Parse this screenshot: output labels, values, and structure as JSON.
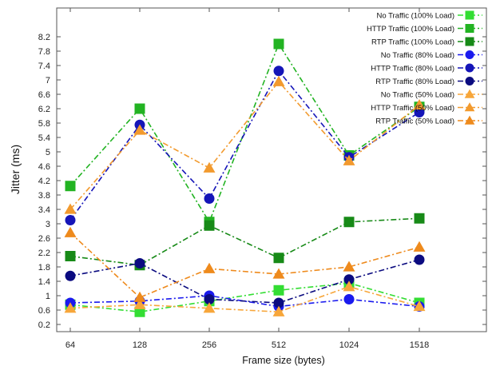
{
  "chart_data": {
    "type": "line",
    "xlabel": "Frame size (bytes)",
    "ylabel": "Jitter (ms)",
    "categories": [
      "64",
      "128",
      "256",
      "512",
      "1024",
      "1518"
    ],
    "y_ticks": [
      "0.2",
      "0.6",
      "1",
      "1.4",
      "1.8",
      "2.2",
      "2.6",
      "3",
      "3.4",
      "3.8",
      "4.2",
      "4.6",
      "5",
      "5.4",
      "5.8",
      "6.2",
      "6.6",
      "7",
      "7.4",
      "7.8",
      "8.2"
    ],
    "ylim": [
      0,
      9
    ],
    "legend_position": "top-right",
    "grid": false,
    "series": [
      {
        "name": "No Traffic (100% Load)",
        "color": "#33dd33",
        "marker": "square",
        "values": [
          0.75,
          0.55,
          0.85,
          1.15,
          1.35,
          0.8
        ]
      },
      {
        "name": "HTTP Traffic (100% Load)",
        "color": "#22b322",
        "marker": "square",
        "values": [
          4.05,
          6.2,
          3.05,
          8.0,
          4.9,
          6.25
        ]
      },
      {
        "name": "RTP Traffic (100% Load)",
        "color": "#178a17",
        "marker": "square",
        "values": [
          2.1,
          1.85,
          2.95,
          2.05,
          3.05,
          3.15
        ]
      },
      {
        "name": "No Traffic (80% Load)",
        "color": "#1a1aee",
        "marker": "circle",
        "values": [
          0.8,
          0.85,
          1.0,
          0.7,
          0.9,
          0.7
        ]
      },
      {
        "name": "HTTP Traffic (80% Load)",
        "color": "#1515b8",
        "marker": "circle",
        "values": [
          3.1,
          5.75,
          3.7,
          7.25,
          4.85,
          6.1
        ]
      },
      {
        "name": "RTP Traffic (80% Load)",
        "color": "#0b0b80",
        "marker": "circle",
        "values": [
          1.55,
          1.9,
          0.9,
          0.8,
          1.45,
          2.0
        ]
      },
      {
        "name": "No Traffic (50% Load)",
        "color": "#f7a63a",
        "marker": "triangle",
        "values": [
          0.65,
          0.75,
          0.65,
          0.55,
          1.25,
          0.7
        ]
      },
      {
        "name": "HTTP Traffic (50% Load)",
        "color": "#f29a2e",
        "marker": "triangle",
        "values": [
          3.4,
          5.6,
          4.55,
          6.95,
          4.75,
          6.3
        ]
      },
      {
        "name": "RTP Traffic (50% Load)",
        "color": "#ee8a1c",
        "marker": "triangle",
        "values": [
          2.75,
          0.95,
          1.75,
          1.6,
          1.8,
          2.35
        ]
      }
    ]
  }
}
